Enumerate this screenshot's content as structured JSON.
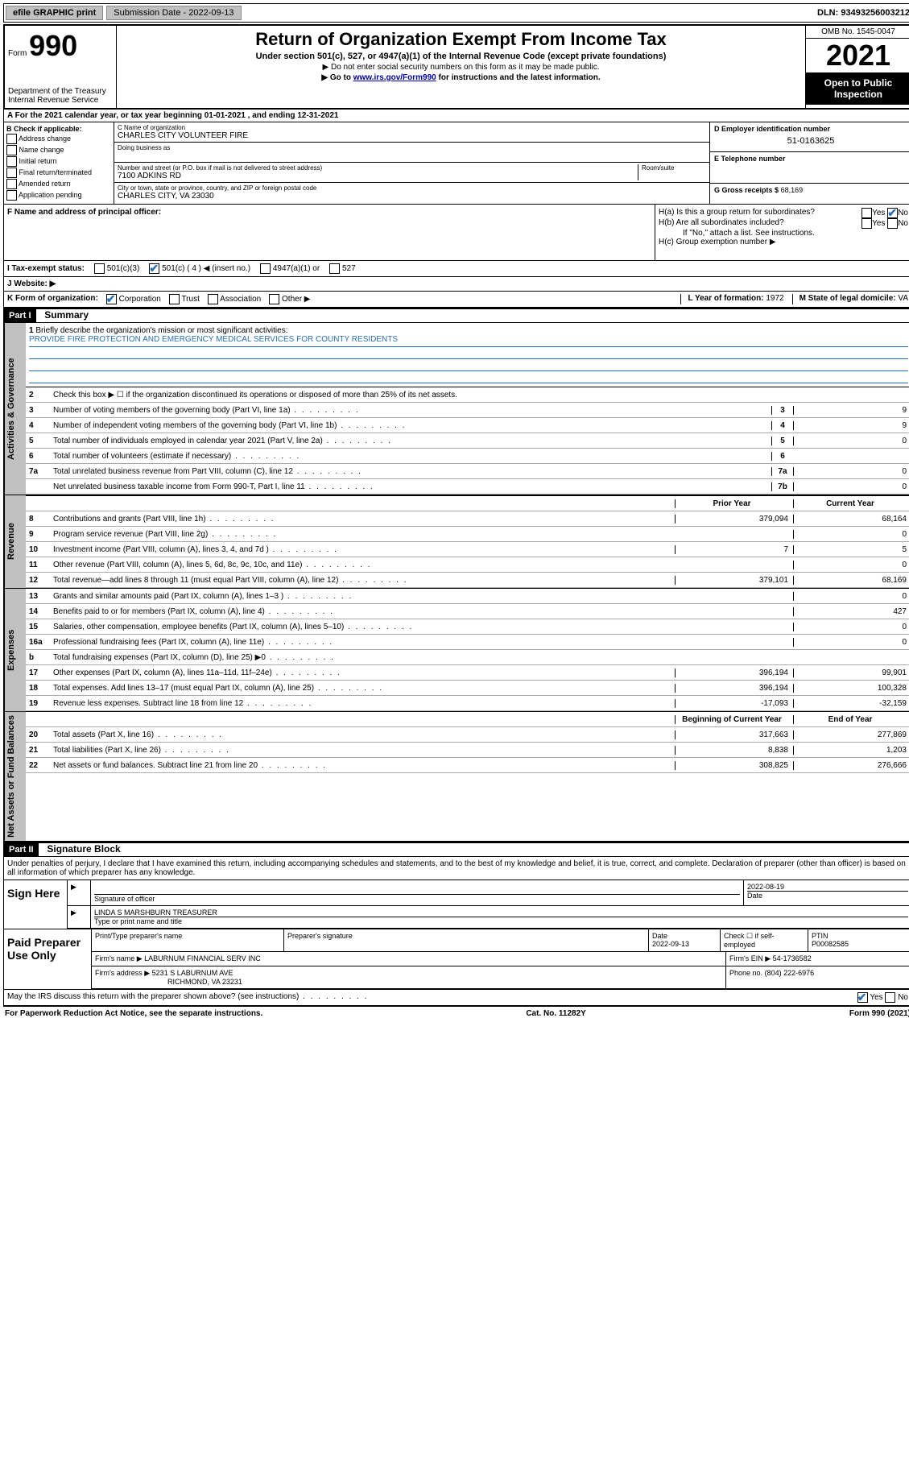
{
  "top_bar": {
    "efile": "efile GRAPHIC print",
    "submission": "Submission Date - 2022-09-13",
    "dln": "DLN: 93493256003212"
  },
  "header": {
    "form_label": "Form",
    "form_num": "990",
    "dept": "Department of the Treasury Internal Revenue Service",
    "title": "Return of Organization Exempt From Income Tax",
    "sub": "Under section 501(c), 527, or 4947(a)(1) of the Internal Revenue Code (except private foundations)",
    "note1": "▶ Do not enter social security numbers on this form as it may be made public.",
    "note2_pre": "▶ Go to ",
    "note2_link": "www.irs.gov/Form990",
    "note2_post": " for instructions and the latest information.",
    "omb": "OMB No. 1545-0047",
    "year": "2021",
    "inspection": "Open to Public Inspection"
  },
  "section_a": "A For the 2021 calendar year, or tax year beginning 01-01-2021 , and ending 12-31-2021",
  "block_b": {
    "title": "B Check if applicable:",
    "opts": [
      "Address change",
      "Name change",
      "Initial return",
      "Final return/terminated",
      "Amended return",
      "Application pending"
    ]
  },
  "block_c": {
    "name_lbl": "C Name of organization",
    "name": "CHARLES CITY VOLUNTEER FIRE",
    "dba_lbl": "Doing business as",
    "addr_lbl": "Number and street (or P.O. box if mail is not delivered to street address)",
    "room_lbl": "Room/suite",
    "addr": "7100 ADKINS RD",
    "city_lbl": "City or town, state or province, country, and ZIP or foreign postal code",
    "city": "CHARLES CITY, VA  23030"
  },
  "block_d": {
    "lbl": "D Employer identification number",
    "val": "51-0163625"
  },
  "block_e": {
    "lbl": "E Telephone number"
  },
  "block_g": {
    "lbl": "G Gross receipts $",
    "val": "68,169"
  },
  "block_f": {
    "lbl": "F  Name and address of principal officer:"
  },
  "block_h": {
    "ha": "H(a)  Is this a group return for subordinates?",
    "hb": "H(b)  Are all subordinates included?",
    "hb_note": "If \"No,\" attach a list. See instructions.",
    "hc": "H(c)  Group exemption number ▶",
    "yes": "Yes",
    "no": "No"
  },
  "block_i": {
    "lbl": "I    Tax-exempt status:",
    "o1": "501(c)(3)",
    "o2": "501(c) ( 4 ) ◀ (insert no.)",
    "o3": "4947(a)(1) or",
    "o4": "527"
  },
  "block_j": {
    "lbl": "J   Website: ▶"
  },
  "block_k": {
    "lbl": "K Form of organization:",
    "o1": "Corporation",
    "o2": "Trust",
    "o3": "Association",
    "o4": "Other ▶"
  },
  "block_l": {
    "lbl": "L Year of formation:",
    "val": "1972"
  },
  "block_m": {
    "lbl": "M State of legal domicile:",
    "val": "VA"
  },
  "part1": {
    "header": "Part I",
    "title": "Summary"
  },
  "summary": {
    "side1": "Activities & Governance",
    "side2": "Revenue",
    "side3": "Expenses",
    "side4": "Net Assets or Fund Balances",
    "q1": "Briefly describe the organization's mission or most significant activities:",
    "mission": "PROVIDE FIRE PROTECTION AND EMERGENCY MEDICAL SERVICES FOR COUNTY RESIDENTS",
    "q2": "Check this box ▶ ☐ if the organization discontinued its operations or disposed of more than 25% of its net assets.",
    "lines_gov": [
      {
        "n": "3",
        "d": "Number of voting members of the governing body (Part VI, line 1a)",
        "b": "3",
        "v": "9"
      },
      {
        "n": "4",
        "d": "Number of independent voting members of the governing body (Part VI, line 1b)",
        "b": "4",
        "v": "9"
      },
      {
        "n": "5",
        "d": "Total number of individuals employed in calendar year 2021 (Part V, line 2a)",
        "b": "5",
        "v": "0"
      },
      {
        "n": "6",
        "d": "Total number of volunteers (estimate if necessary)",
        "b": "6",
        "v": ""
      },
      {
        "n": "7a",
        "d": "Total unrelated business revenue from Part VIII, column (C), line 12",
        "b": "7a",
        "v": "0"
      },
      {
        "n": "",
        "d": "Net unrelated business taxable income from Form 990-T, Part I, line 11",
        "b": "7b",
        "v": "0"
      }
    ],
    "col_hdr_prior": "Prior Year",
    "col_hdr_current": "Current Year",
    "col_hdr_begin": "Beginning of Current Year",
    "col_hdr_end": "End of Year",
    "lines_rev": [
      {
        "n": "8",
        "d": "Contributions and grants (Part VIII, line 1h)",
        "p": "379,094",
        "c": "68,164"
      },
      {
        "n": "9",
        "d": "Program service revenue (Part VIII, line 2g)",
        "p": "",
        "c": "0"
      },
      {
        "n": "10",
        "d": "Investment income (Part VIII, column (A), lines 3, 4, and 7d )",
        "p": "7",
        "c": "5"
      },
      {
        "n": "11",
        "d": "Other revenue (Part VIII, column (A), lines 5, 6d, 8c, 9c, 10c, and 11e)",
        "p": "",
        "c": "0"
      },
      {
        "n": "12",
        "d": "Total revenue—add lines 8 through 11 (must equal Part VIII, column (A), line 12)",
        "p": "379,101",
        "c": "68,169"
      }
    ],
    "lines_exp": [
      {
        "n": "13",
        "d": "Grants and similar amounts paid (Part IX, column (A), lines 1–3 )",
        "p": "",
        "c": "0"
      },
      {
        "n": "14",
        "d": "Benefits paid to or for members (Part IX, column (A), line 4)",
        "p": "",
        "c": "427"
      },
      {
        "n": "15",
        "d": "Salaries, other compensation, employee benefits (Part IX, column (A), lines 5–10)",
        "p": "",
        "c": "0"
      },
      {
        "n": "16a",
        "d": "Professional fundraising fees (Part IX, column (A), line 11e)",
        "p": "",
        "c": "0"
      },
      {
        "n": "b",
        "d": "Total fundraising expenses (Part IX, column (D), line 25) ▶0",
        "p": "shade",
        "c": "shade"
      },
      {
        "n": "17",
        "d": "Other expenses (Part IX, column (A), lines 11a–11d, 11f–24e)",
        "p": "396,194",
        "c": "99,901"
      },
      {
        "n": "18",
        "d": "Total expenses. Add lines 13–17 (must equal Part IX, column (A), line 25)",
        "p": "396,194",
        "c": "100,328"
      },
      {
        "n": "19",
        "d": "Revenue less expenses. Subtract line 18 from line 12",
        "p": "-17,093",
        "c": "-32,159"
      }
    ],
    "lines_net": [
      {
        "n": "20",
        "d": "Total assets (Part X, line 16)",
        "p": "317,663",
        "c": "277,869"
      },
      {
        "n": "21",
        "d": "Total liabilities (Part X, line 26)",
        "p": "8,838",
        "c": "1,203"
      },
      {
        "n": "22",
        "d": "Net assets or fund balances. Subtract line 21 from line 20",
        "p": "308,825",
        "c": "276,666"
      }
    ]
  },
  "part2": {
    "header": "Part II",
    "title": "Signature Block",
    "penalty": "Under penalties of perjury, I declare that I have examined this return, including accompanying schedules and statements, and to the best of my knowledge and belief, it is true, correct, and complete. Declaration of preparer (other than officer) is based on all information of which preparer has any knowledge."
  },
  "sign": {
    "lbl": "Sign Here",
    "sig_lbl": "Signature of officer",
    "date_lbl": "Date",
    "date_val": "2022-08-19",
    "name": "LINDA S MARSHBURN  TREASURER",
    "name_lbl": "Type or print name and title"
  },
  "preparer": {
    "lbl": "Paid Preparer Use Only",
    "h1": "Print/Type preparer's name",
    "h2": "Preparer's signature",
    "h3": "Date",
    "date": "2022-09-13",
    "h4": "Check ☐ if self-employed",
    "h5": "PTIN",
    "ptin": "P00082585",
    "firm_name_lbl": "Firm's name    ▶",
    "firm_name": "LABURNUM FINANCIAL SERV INC",
    "firm_ein_lbl": "Firm's EIN ▶",
    "firm_ein": "54-1736582",
    "firm_addr_lbl": "Firm's address ▶",
    "firm_addr1": "5231 S LABURNUM AVE",
    "firm_addr2": "RICHMOND, VA  23231",
    "phone_lbl": "Phone no.",
    "phone": "(804) 222-6976"
  },
  "may_irs": "May the IRS discuss this return with the preparer shown above? (see instructions)",
  "footer": {
    "left": "For Paperwork Reduction Act Notice, see the separate instructions.",
    "mid": "Cat. No. 11282Y",
    "right": "Form 990 (2021)"
  }
}
